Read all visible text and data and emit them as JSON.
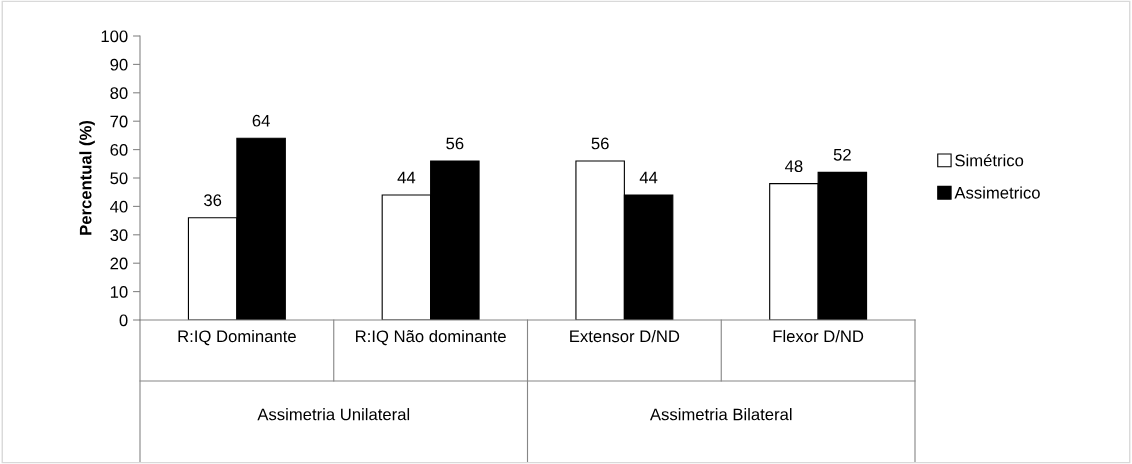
{
  "chart_data": {
    "type": "bar",
    "ylabel": "Percentual (%)",
    "categories": [
      "R:IQ Dominante",
      "R:IQ Não dominante",
      "Extensor D/ND",
      "Flexor D/ND"
    ],
    "series": [
      {
        "name": "Simétrico",
        "color": "#ffffff",
        "values": [
          36,
          44,
          56,
          48
        ]
      },
      {
        "name": "Assimetrico",
        "color": "#000000",
        "values": [
          64,
          56,
          44,
          52
        ]
      }
    ],
    "ylim": [
      0,
      100
    ],
    "yticks": [
      0,
      10,
      20,
      30,
      40,
      50,
      60,
      70,
      80,
      90,
      100
    ],
    "data_labels": true,
    "grid": false,
    "legend": "right",
    "annotations": [
      "Assimetria Unilateral",
      "Assimetria Bilateral"
    ]
  }
}
